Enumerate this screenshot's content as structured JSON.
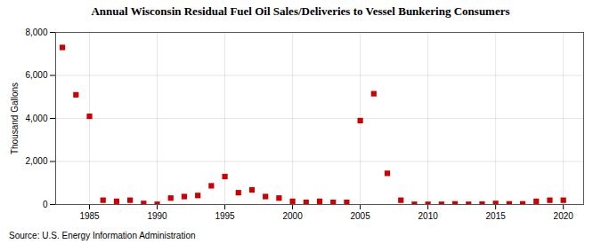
{
  "chart_data": {
    "type": "scatter",
    "title": "Annual Wisconsin Residual Fuel Oil Sales/Deliveries to Vessel Bunkering Consumers",
    "ylabel": "Thousand Gallons",
    "annotations": [
      "Source: U.S. Energy Information Administration"
    ],
    "x": [
      1983,
      1984,
      1985,
      1986,
      1987,
      1988,
      1989,
      1990,
      1991,
      1992,
      1993,
      1994,
      1995,
      1996,
      1997,
      1998,
      1999,
      2000,
      2001,
      2002,
      2003,
      2004,
      2005,
      2006,
      2007,
      2008,
      2009,
      2010,
      2011,
      2012,
      2013,
      2014,
      2015,
      2016,
      2017,
      2018,
      2019,
      2020
    ],
    "values": [
      7300,
      5100,
      4100,
      200,
      150,
      200,
      50,
      10,
      300,
      370,
      420,
      870,
      1300,
      550,
      680,
      370,
      300,
      150,
      100,
      150,
      100,
      100,
      3900,
      5150,
      1450,
      200,
      10,
      10,
      10,
      30,
      10,
      20,
      50,
      30,
      30,
      150,
      200,
      200
    ],
    "color": "#cc0000",
    "marker": "square",
    "xlim": [
      1982.5,
      2021.5
    ],
    "ylim": [
      0,
      8000
    ],
    "xticks": [
      1985,
      1990,
      1995,
      2000,
      2005,
      2010,
      2015,
      2020
    ],
    "yticks": [
      0,
      {
        "value": 2000,
        "label": "2,000"
      },
      {
        "value": 4000,
        "label": "4,000"
      },
      {
        "value": 6000,
        "label": "6,000"
      },
      {
        "value": 8000,
        "label": "8,000"
      }
    ],
    "grid": true
  }
}
